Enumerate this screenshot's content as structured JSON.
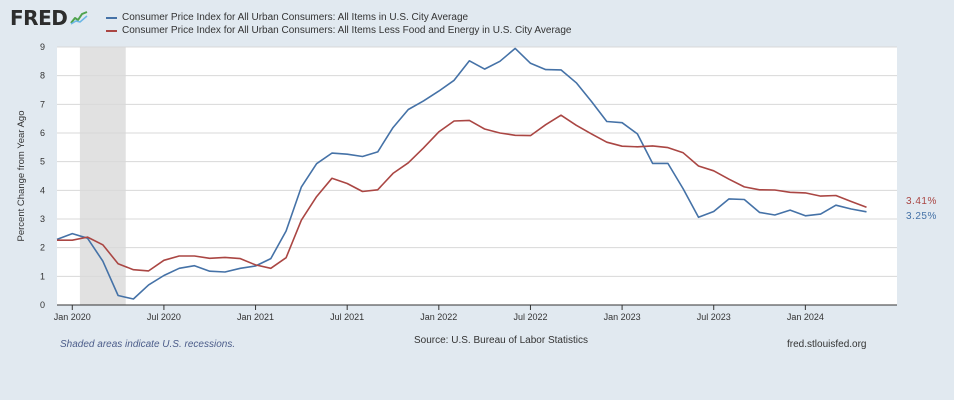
{
  "header": {
    "logo_text": "FRED",
    "logo_icon": "trend-line-icon"
  },
  "colors": {
    "series1": "#4572a7",
    "series2": "#aa4643",
    "plot_bg": "#ffffff",
    "page_bg": "#e1e9f0",
    "recession": "#e1e1e1",
    "grid": "#d8d8d8"
  },
  "chart_data": {
    "type": "line",
    "ylabel": "Percent Change from Year Ago",
    "ylim": [
      0,
      9
    ],
    "yticks": [
      "0",
      "1",
      "2",
      "3",
      "4",
      "5",
      "6",
      "7",
      "8",
      "9"
    ],
    "xticks": [
      {
        "label": "Jan 2020",
        "month": "2020-01"
      },
      {
        "label": "Jul 2020",
        "month": "2020-07"
      },
      {
        "label": "Jan 2021",
        "month": "2021-01"
      },
      {
        "label": "Jul 2021",
        "month": "2021-07"
      },
      {
        "label": "Jan 2022",
        "month": "2022-01"
      },
      {
        "label": "Jul 2022",
        "month": "2022-07"
      },
      {
        "label": "Jan 2023",
        "month": "2023-01"
      },
      {
        "label": "Jul 2023",
        "month": "2023-07"
      },
      {
        "label": "Jan 2024",
        "month": "2024-01"
      }
    ],
    "x_range": [
      "2019-12",
      "2024-07"
    ],
    "recessions": [
      {
        "start": "2020-02",
        "end": "2020-04"
      }
    ],
    "grid": true,
    "legend_position": "top",
    "series": [
      {
        "name": "Consumer Price Index for All Urban Consumers: All Items in U.S. City Average",
        "start": "2019-12",
        "values": [
          2.29,
          2.49,
          2.33,
          1.53,
          0.33,
          0.21,
          0.7,
          1.03,
          1.28,
          1.37,
          1.18,
          1.15,
          1.28,
          1.36,
          1.62,
          2.58,
          4.12,
          4.93,
          5.3,
          5.26,
          5.18,
          5.34,
          6.19,
          6.82,
          7.12,
          7.46,
          7.84,
          8.52,
          8.23,
          8.5,
          8.95,
          8.43,
          8.21,
          8.2,
          7.75,
          7.1,
          6.4,
          6.36,
          5.97,
          4.94,
          4.94,
          4.05,
          3.06,
          3.26,
          3.7,
          3.68,
          3.23,
          3.14,
          3.31,
          3.11,
          3.17,
          3.48,
          3.35,
          3.25
        ],
        "end_label": "3.25%"
      },
      {
        "name": "Consumer Price Index for All Urban Consumers: All Items Less Food and Energy in U.S. City Average",
        "start": "2019-12",
        "values": [
          2.26,
          2.26,
          2.37,
          2.1,
          1.44,
          1.23,
          1.19,
          1.56,
          1.71,
          1.71,
          1.63,
          1.66,
          1.62,
          1.4,
          1.28,
          1.65,
          2.96,
          3.78,
          4.42,
          4.24,
          3.96,
          4.02,
          4.59,
          4.96,
          5.48,
          6.04,
          6.42,
          6.44,
          6.14,
          6.0,
          5.92,
          5.91,
          6.29,
          6.62,
          6.27,
          5.97,
          5.68,
          5.54,
          5.52,
          5.55,
          5.49,
          5.31,
          4.85,
          4.68,
          4.39,
          4.12,
          4.02,
          4.01,
          3.93,
          3.91,
          3.8,
          3.82,
          3.61,
          3.41
        ],
        "end_label": "3.41%"
      }
    ]
  },
  "footer": {
    "note": "Shaded areas indicate U.S. recessions.",
    "source": "Source: U.S. Bureau of Labor Statistics",
    "site": "fred.stlouisfed.org"
  }
}
